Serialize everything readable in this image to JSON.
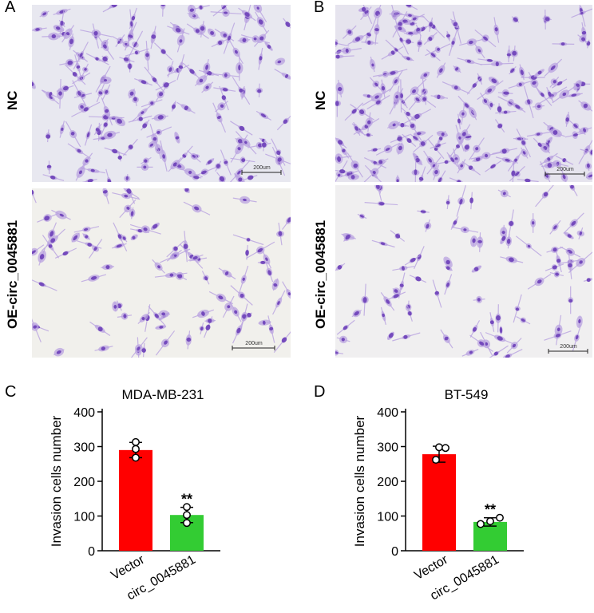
{
  "figure": {
    "panels": {
      "A": {
        "letter": "A"
      },
      "B": {
        "letter": "B"
      },
      "C": {
        "letter": "C"
      },
      "D": {
        "letter": "D"
      }
    },
    "rows": {
      "nc": "NC",
      "oe": "OE-circ_0045881"
    },
    "scale_label": "200um"
  },
  "colors": {
    "vector_bar": "#ff0000",
    "circ_bar": "#33cc33",
    "stain": "#6b3fb8",
    "stain_light": "#b9a3e0"
  },
  "chart_data": [
    {
      "type": "bar",
      "title": "MDA-MB-231",
      "ylabel": "Invasion cells number",
      "xlabel": "",
      "categories": [
        "Vector",
        "circ_0045881"
      ],
      "values": [
        290,
        103
      ],
      "errors": [
        22,
        22
      ],
      "points": [
        [
          268,
          293,
          313
        ],
        [
          80,
          103,
          126
        ]
      ],
      "significance": [
        "",
        "**"
      ],
      "ylim": [
        0,
        400
      ],
      "yticks": [
        "0",
        "100",
        "200",
        "300",
        "400"
      ]
    },
    {
      "type": "bar",
      "title": "BT-549",
      "ylabel": "Invasion cells number",
      "xlabel": "",
      "categories": [
        "Vector",
        "circ_0045881"
      ],
      "values": [
        278,
        83
      ],
      "errors": [
        23,
        12
      ],
      "points": [
        [
          262,
          298,
          296
        ],
        [
          77,
          85,
          95
        ]
      ],
      "significance": [
        "",
        "**"
      ],
      "ylim": [
        0,
        400
      ],
      "yticks": [
        "0",
        "100",
        "200",
        "300",
        "400"
      ]
    }
  ]
}
